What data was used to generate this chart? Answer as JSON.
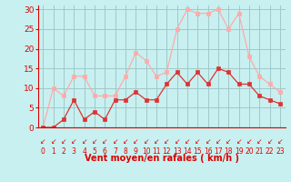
{
  "x": [
    0,
    1,
    2,
    3,
    4,
    5,
    6,
    7,
    8,
    9,
    10,
    11,
    12,
    13,
    14,
    15,
    16,
    17,
    18,
    19,
    20,
    21,
    22,
    23
  ],
  "wind_avg": [
    0,
    0,
    2,
    7,
    2,
    4,
    2,
    7,
    7,
    9,
    7,
    7,
    11,
    14,
    11,
    14,
    11,
    15,
    14,
    11,
    11,
    8,
    7,
    6
  ],
  "wind_gust": [
    0,
    10,
    8,
    13,
    13,
    8,
    8,
    8,
    13,
    19,
    17,
    13,
    14,
    25,
    30,
    29,
    29,
    30,
    25,
    29,
    18,
    13,
    11,
    9
  ],
  "line_avg_color": "#dd3333",
  "line_gust_color": "#ffaaaa",
  "bg_color": "#c8f0f0",
  "grid_color": "#a0c8c8",
  "axis_color": "#dd0000",
  "xlabel": "Vent moyen/en rafales ( km/h )",
  "ylabel_ticks": [
    0,
    5,
    10,
    15,
    20,
    25,
    30
  ],
  "xlim": [
    -0.5,
    23.5
  ],
  "ylim": [
    0,
    31
  ],
  "arrow_char": "↙"
}
